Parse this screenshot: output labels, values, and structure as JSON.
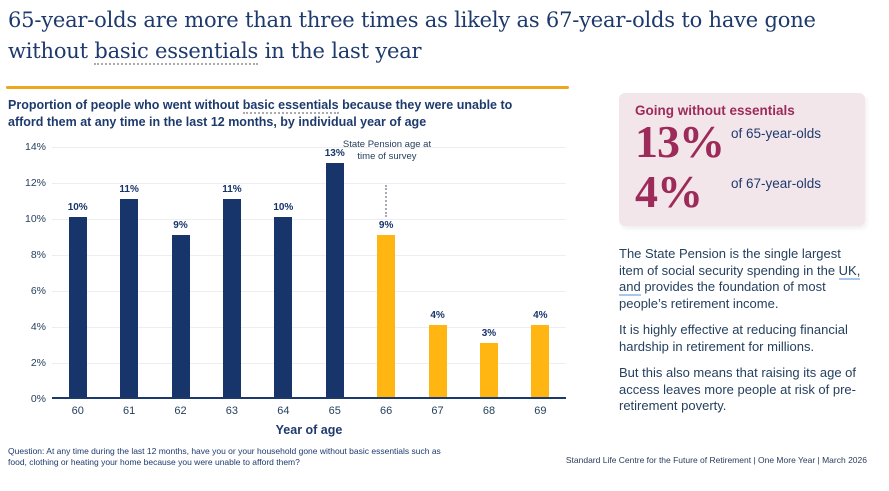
{
  "slide": {
    "title": {
      "line1": "65-year-olds are more than three times as likely as 67-year-olds to have gone",
      "line2_pre": "without ",
      "line2_underlined": "basic essentials",
      "line2_post": " in the last year"
    },
    "subtitle": {
      "line1_pre": "Proportion of people who went without ",
      "line1_underlined": "basic essentials",
      "line1_post": " because they were unable to",
      "line2": "afford them at any time in the last 12 months, by individual year of age"
    },
    "footnote": "Question: At any time during the last 12 months, have you or your household gone without basic essentials such as food, clothing or heating your home because you were unable to afford them?",
    "footer": "Standard Life Centre for the Future of Retirement  |  One More Year | March 2026"
  },
  "stat_box": {
    "heading": "Going without essentials",
    "stats": [
      {
        "value": "13%",
        "label": "of 65-year-olds"
      },
      {
        "value": "4%",
        "label": "of 67-year-olds"
      }
    ]
  },
  "body_text": {
    "p1_pre": "The State Pension is the single largest item of social security spending in the ",
    "p1_underlined": "UK, and",
    "p1_post": " provides the foundation of most people’s retirement income.",
    "p2": "It is highly effective at reducing financial hardship in retirement for millions.",
    "p3": "But this also means that raising its age of access leaves more people at risk of pre-retirement poverty."
  },
  "chart_data": {
    "type": "bar",
    "title": "Proportion of people who went without basic essentials because they were unable to afford them at any time in the last 12 months, by individual year of age",
    "xlabel": "Year of age",
    "ylabel": "",
    "ylim": [
      0,
      14
    ],
    "yticks": [
      "0%",
      "2%",
      "4%",
      "6%",
      "8%",
      "10%",
      "12%",
      "14%"
    ],
    "grid": "horizontal",
    "legend": "none",
    "categories": [
      "60",
      "61",
      "62",
      "63",
      "64",
      "65",
      "66",
      "67",
      "68",
      "69"
    ],
    "values": [
      10,
      11,
      9,
      11,
      10,
      13,
      9,
      4,
      3,
      4
    ],
    "bar_labels": [
      "10%",
      "11%",
      "9%",
      "11%",
      "10%",
      "13%",
      "9%",
      "4%",
      "3%",
      "4%"
    ],
    "bar_colors": [
      "#17356B",
      "#17356B",
      "#17356B",
      "#17356B",
      "#17356B",
      "#17356B",
      "#FFB612",
      "#FFB612",
      "#FFB612",
      "#FFB612"
    ],
    "annotation": {
      "text": "State Pension age at time of survey",
      "at_category": "66"
    }
  },
  "colors": {
    "navy_bar": "#17356B",
    "gold_bar": "#FFB612",
    "maroon": "#9D2B5A",
    "pink_background": "#F3E6EA",
    "gold_divider": "#ECA71E",
    "title_navy": "#1E3A6D",
    "body_slate": "#26405F",
    "gridline": "#EDEDF2"
  }
}
